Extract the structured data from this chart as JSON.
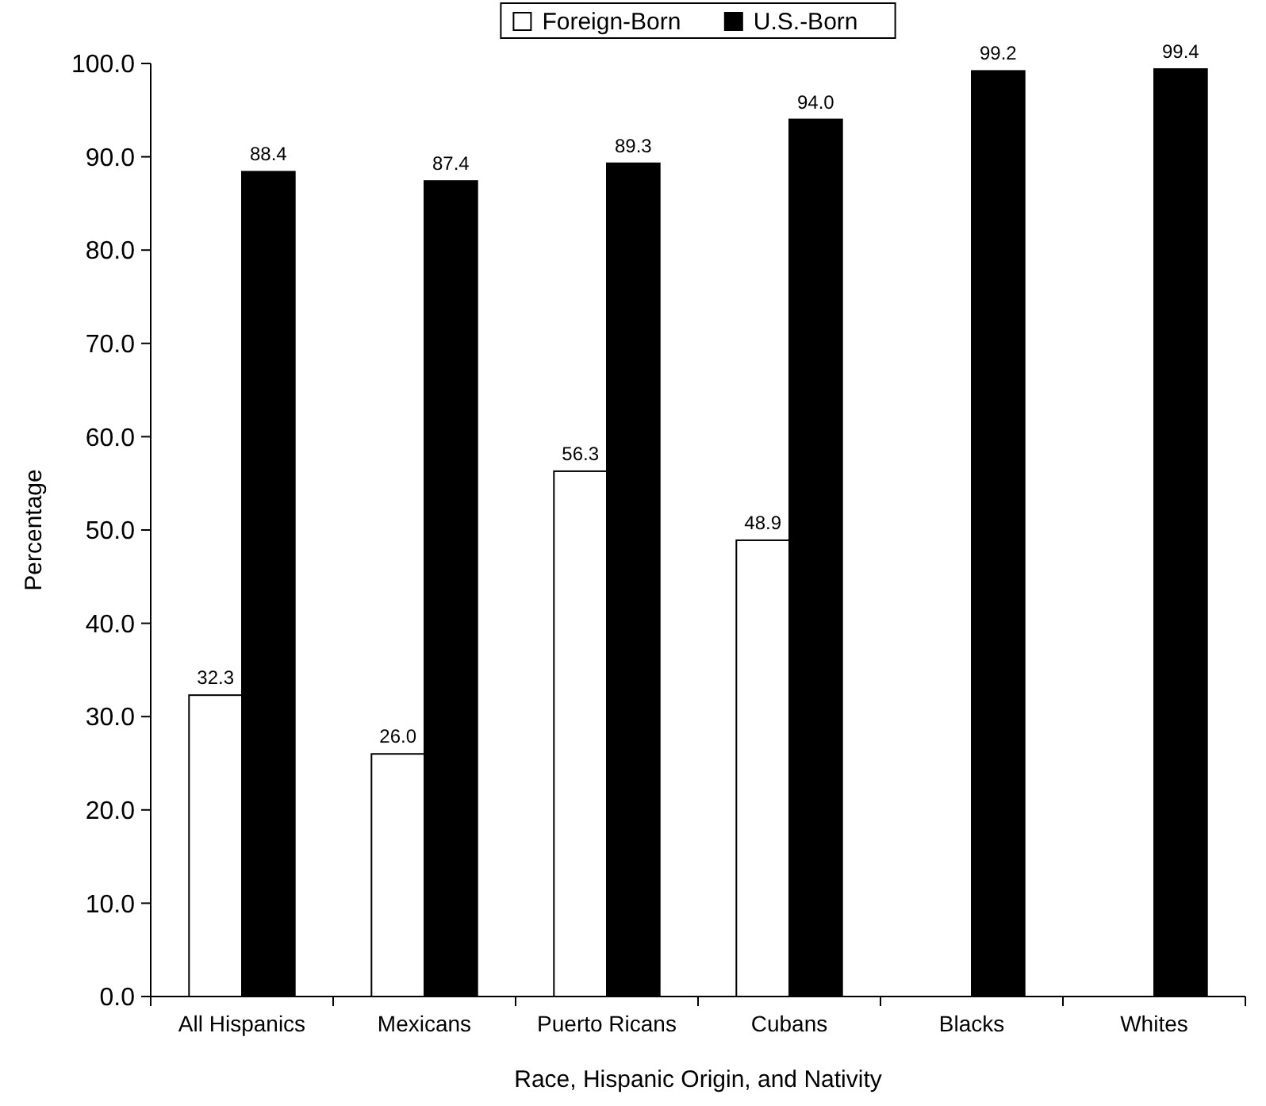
{
  "chart_data": {
    "type": "bar",
    "xlabel": "Race, Hispanic Origin, and Nativity",
    "ylabel": "Percentage",
    "categories": [
      "All Hispanics",
      "Mexicans",
      "Puerto Ricans",
      "Cubans",
      "Blacks",
      "Whites"
    ],
    "series": [
      {
        "name": "Foreign-Born",
        "color": "#ffffff",
        "values": [
          32.3,
          26.0,
          56.3,
          48.9,
          null,
          null
        ],
        "value_labels": [
          "32.3",
          "26.0",
          "56.3",
          "48.9",
          null,
          null
        ]
      },
      {
        "name": "U.S.-Born",
        "color": "#000000",
        "values": [
          88.4,
          87.4,
          89.3,
          94.0,
          99.2,
          99.4
        ],
        "value_labels": [
          "88.4",
          "87.4",
          "89.3",
          "94.0",
          "99.2",
          "99.4"
        ]
      }
    ],
    "ylim": [
      0,
      100
    ],
    "yticks": [
      {
        "value": 0,
        "label": "0.0"
      },
      {
        "value": 10,
        "label": "10.0"
      },
      {
        "value": 20,
        "label": "20.0"
      },
      {
        "value": 30,
        "label": "30.0"
      },
      {
        "value": 40,
        "label": "40.0"
      },
      {
        "value": 50,
        "label": "50.0"
      },
      {
        "value": 60,
        "label": "60.0"
      },
      {
        "value": 70,
        "label": "70.0"
      },
      {
        "value": 80,
        "label": "80.0"
      },
      {
        "value": 90,
        "label": "90.0"
      },
      {
        "value": 100,
        "label": "100.0"
      }
    ],
    "legend": "top",
    "grid": false
  }
}
